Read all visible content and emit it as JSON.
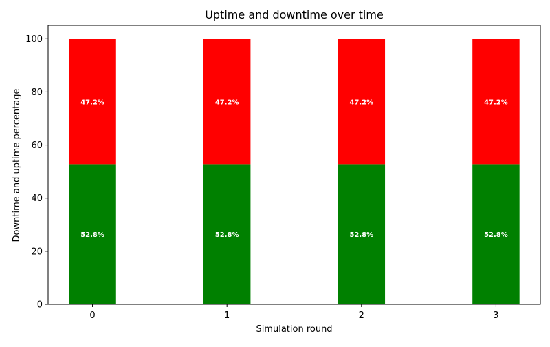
{
  "chart_data": {
    "type": "bar",
    "stacked": true,
    "title": "Uptime and downtime over time",
    "xlabel": "Simulation round",
    "ylabel": "Downtime and uptime percentage",
    "categories": [
      "0",
      "1",
      "2",
      "3"
    ],
    "ylim": [
      0,
      105
    ],
    "yticks": [
      0,
      20,
      40,
      60,
      80,
      100
    ],
    "grid": false,
    "series": [
      {
        "values": [
          52.8,
          52.8,
          52.8,
          52.8
        ],
        "labels": [
          "52.8%",
          "52.8%",
          "52.8%",
          "52.8%"
        ],
        "color": "#008000"
      },
      {
        "values": [
          47.2,
          47.2,
          47.2,
          47.2
        ],
        "labels": [
          "47.2%",
          "47.2%",
          "47.2%",
          "47.2%"
        ],
        "color": "#ff0000"
      }
    ]
  }
}
